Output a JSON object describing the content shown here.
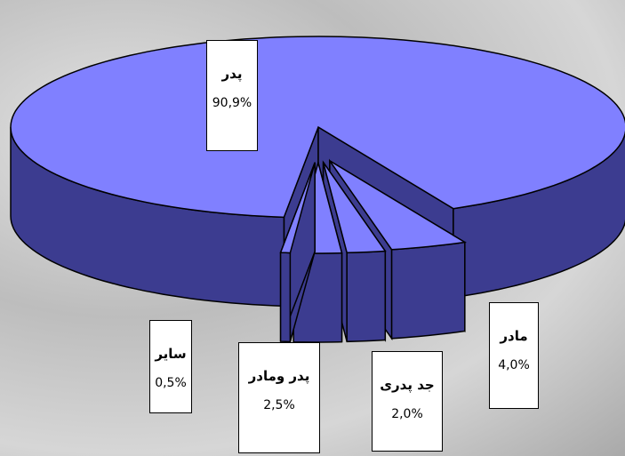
{
  "chart_data": {
    "type": "pie3d",
    "categories": [
      "پدر",
      "مادر",
      "جد پدری",
      "پدر ومادر",
      "سایر"
    ],
    "values": [
      90.9,
      4.0,
      2.0,
      2.5,
      0.5
    ],
    "value_labels": [
      "90,9%",
      "4,0%",
      "2,0%",
      "2,5%",
      "0,5%"
    ],
    "color": "#8080ff",
    "side_color": "#3c3c90"
  }
}
